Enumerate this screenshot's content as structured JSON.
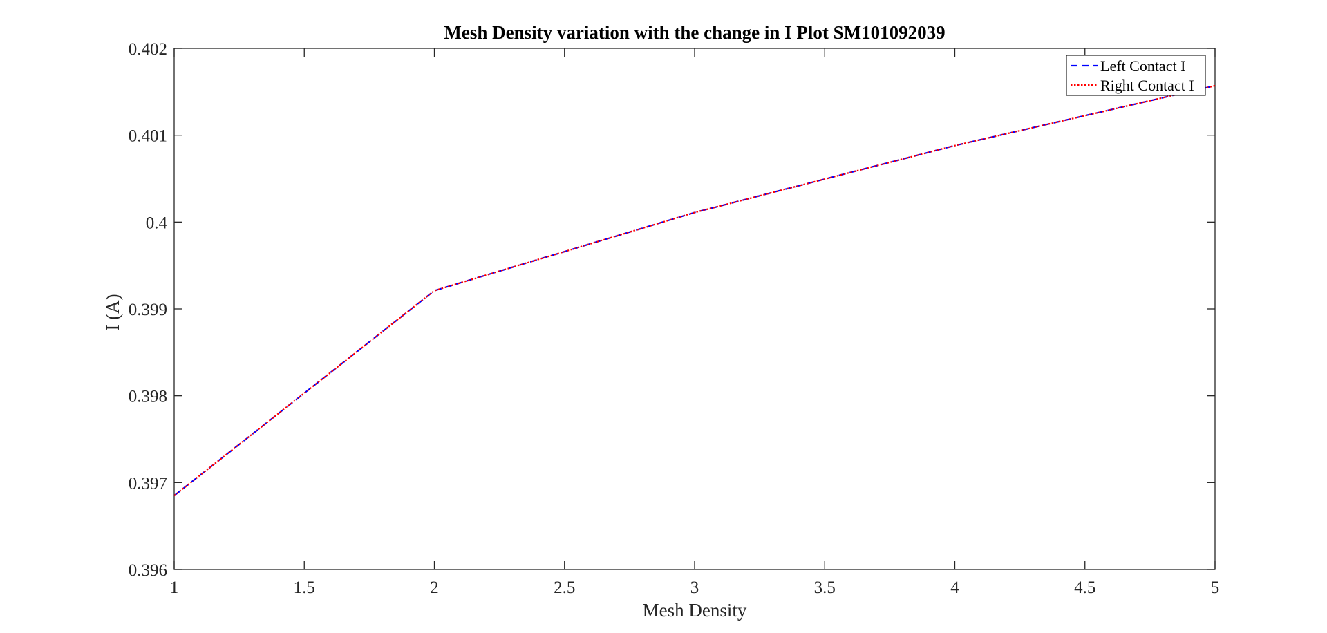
{
  "chart_data": {
    "type": "line",
    "title": "Mesh Density variation with the change in I Plot SM101092039",
    "xlabel": "Mesh Density",
    "ylabel": "I (A)",
    "xlim": [
      1,
      5
    ],
    "ylim": [
      0.396,
      0.402
    ],
    "xticks": [
      1,
      1.5,
      2,
      2.5,
      3,
      3.5,
      4,
      4.5,
      5
    ],
    "xtick_labels": [
      "1",
      "1.5",
      "2",
      "2.5",
      "3",
      "3.5",
      "4",
      "4.5",
      "5"
    ],
    "yticks": [
      0.396,
      0.397,
      0.398,
      0.399,
      0.4,
      0.401,
      0.402
    ],
    "ytick_labels": [
      "0.396",
      "0.397",
      "0.398",
      "0.399",
      "0.4",
      "0.401",
      "0.402"
    ],
    "grid": false,
    "legend_position": "top-right",
    "x": [
      1,
      2,
      3,
      4,
      5
    ],
    "series": [
      {
        "name": "Left Contact I",
        "values": [
          0.39685,
          0.39921,
          0.40011,
          0.40088,
          0.40157
        ],
        "color": "#0000ff",
        "style": "dashed"
      },
      {
        "name": "Right Contact I",
        "values": [
          0.39685,
          0.39921,
          0.40011,
          0.40088,
          0.40157
        ],
        "color": "#ff0000",
        "style": "dotted"
      }
    ]
  }
}
